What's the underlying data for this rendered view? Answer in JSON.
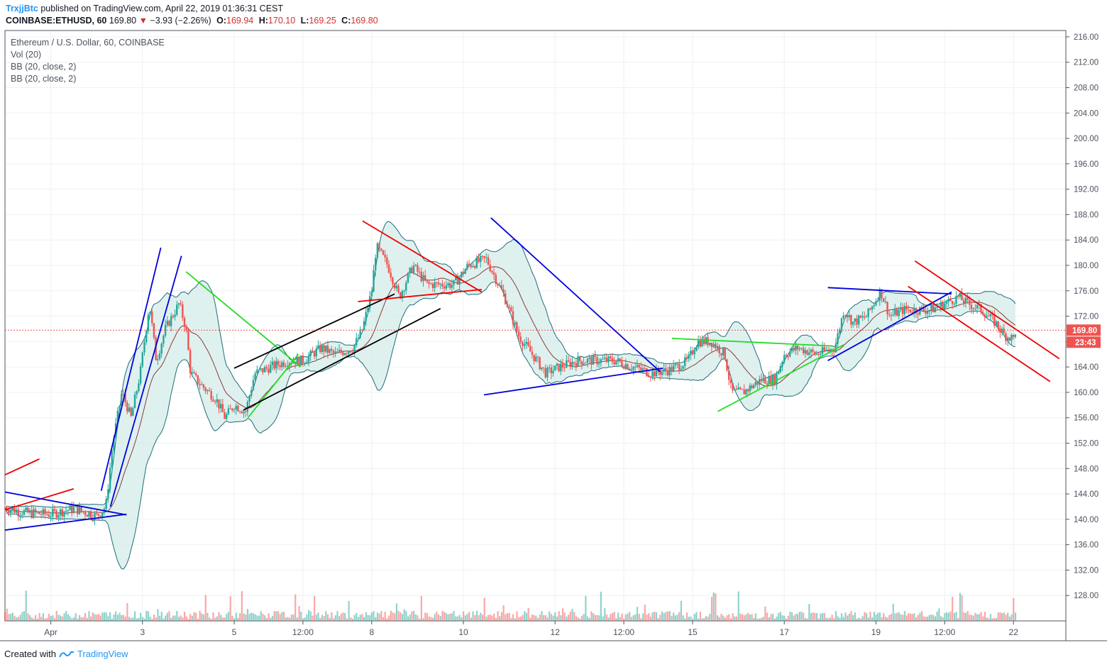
{
  "header": {
    "author": "TrxjjBtc",
    "published_text": "published on TradingView.com, April 22, 2019 01:36:31 CEST",
    "symbol": "COINBASE:ETHUSD, 60",
    "last": "169.80",
    "change_arrow": "▼",
    "change": "−3.93 (−2.26%)",
    "o_label": "O:",
    "o_value": "169.94",
    "h_label": "H:",
    "h_value": "170.10",
    "l_label": "L:",
    "l_value": "169.25",
    "c_label": "C:",
    "c_value": "169.80"
  },
  "legend": {
    "title": "Ethereum / U.S. Dollar, 60, COINBASE",
    "vol": "Vol (20)",
    "bb1": "BB (20, close, 2)",
    "bb2": "BB (20, close, 2)"
  },
  "footer": {
    "created_with": "Created with",
    "brand": "TradingView"
  },
  "colors": {
    "up": "#26a69a",
    "down": "#ef5350",
    "bb_band": "#1e6e7a",
    "bb_fill": "#d4ece9",
    "bb_basis": "#8b3a3a",
    "blue_line": "#0000dd",
    "red_line": "#ee0000",
    "green_line": "#22dd22",
    "black_line": "#000000",
    "price_label": "#ef5350"
  },
  "chart_data": {
    "type": "candlestick",
    "title": "Ethereum / U.S. Dollar, 60, COINBASE",
    "ylim": [
      124,
      217
    ],
    "y_ticks": [
      128,
      132,
      136,
      140,
      144,
      148,
      152,
      156,
      160,
      164,
      168,
      172,
      176,
      180,
      184,
      188,
      192,
      196,
      200,
      204,
      208,
      212,
      216
    ],
    "y_tick_labels": [
      "128.00",
      "132.00",
      "136.00",
      "140.00",
      "144.00",
      "148.00",
      "152.00",
      "156.00",
      "160.00",
      "164.00",
      "168.00",
      "172.00",
      "176.00",
      "180.00",
      "184.00",
      "188.00",
      "192.00",
      "196.00",
      "200.00",
      "204.00",
      "208.00",
      "212.00",
      "216.00"
    ],
    "x_ticks": [
      {
        "label": "Apr",
        "day": 1.0
      },
      {
        "label": "3",
        "day": 3.0
      },
      {
        "label": "5",
        "day": 5.0
      },
      {
        "label": "12:00",
        "day": 6.5
      },
      {
        "label": "8",
        "day": 8.0
      },
      {
        "label": "10",
        "day": 10.0
      },
      {
        "label": "12",
        "day": 12.0
      },
      {
        "label": "12:00",
        "day": 13.5
      },
      {
        "label": "15",
        "day": 15.0
      },
      {
        "label": "17",
        "day": 17.0
      },
      {
        "label": "19",
        "day": 19.0
      },
      {
        "label": "12:00",
        "day": 20.5
      },
      {
        "label": "22",
        "day": 22.0
      }
    ],
    "x_range_days": [
      -0.0,
      23.1
    ],
    "close_path": [
      [
        0.0,
        141.8
      ],
      [
        0.5,
        141.0
      ],
      [
        1.0,
        140.8
      ],
      [
        1.5,
        141.7
      ],
      [
        2.0,
        140.5
      ],
      [
        2.2,
        142.0
      ],
      [
        2.35,
        152
      ],
      [
        2.55,
        160
      ],
      [
        2.75,
        156
      ],
      [
        2.95,
        163
      ],
      [
        3.15,
        174
      ],
      [
        3.3,
        165
      ],
      [
        3.5,
        170
      ],
      [
        3.8,
        174
      ],
      [
        3.95,
        170
      ],
      [
        4.05,
        163
      ],
      [
        4.3,
        161
      ],
      [
        4.6,
        159
      ],
      [
        4.8,
        156
      ],
      [
        5.0,
        158
      ],
      [
        5.25,
        157
      ],
      [
        5.45,
        163
      ],
      [
        5.8,
        164
      ],
      [
        6.2,
        165
      ],
      [
        6.5,
        165
      ],
      [
        6.9,
        167
      ],
      [
        7.2,
        166
      ],
      [
        7.6,
        167
      ],
      [
        7.8,
        170
      ],
      [
        8.0,
        176
      ],
      [
        8.1,
        183
      ],
      [
        8.35,
        180
      ],
      [
        8.6,
        175
      ],
      [
        8.9,
        180
      ],
      [
        9.2,
        177
      ],
      [
        9.5,
        177
      ],
      [
        9.8,
        177
      ],
      [
        10.1,
        180
      ],
      [
        10.5,
        181
      ],
      [
        10.9,
        175
      ],
      [
        11.2,
        169
      ],
      [
        11.5,
        166
      ],
      [
        11.8,
        163
      ],
      [
        12.1,
        164
      ],
      [
        12.5,
        165
      ],
      [
        12.9,
        165
      ],
      [
        13.3,
        165
      ],
      [
        13.7,
        164
      ],
      [
        14.1,
        163
      ],
      [
        14.5,
        163.5
      ],
      [
        14.9,
        165
      ],
      [
        15.1,
        168
      ],
      [
        15.4,
        168
      ],
      [
        15.7,
        166
      ],
      [
        15.85,
        160
      ],
      [
        16.1,
        160
      ],
      [
        16.5,
        162
      ],
      [
        16.8,
        162
      ],
      [
        17.0,
        166
      ],
      [
        17.3,
        167
      ],
      [
        17.7,
        166
      ],
      [
        18.1,
        167
      ],
      [
        18.3,
        173
      ],
      [
        18.5,
        171
      ],
      [
        18.8,
        172
      ],
      [
        19.1,
        176
      ],
      [
        19.3,
        172
      ],
      [
        19.6,
        173
      ],
      [
        19.9,
        173
      ],
      [
        20.2,
        173
      ],
      [
        20.5,
        174
      ],
      [
        20.8,
        175
      ],
      [
        21.0,
        174
      ],
      [
        21.3,
        173
      ],
      [
        21.6,
        171
      ],
      [
        21.8,
        169
      ],
      [
        22.0,
        168.5
      ],
      [
        22.05,
        169.8
      ]
    ],
    "last_price": 169.8,
    "last_price_label": "169.80",
    "countdown_label": "23:43",
    "volume_spikes": [
      {
        "day": 2.3,
        "vol": 35
      },
      {
        "day": 2.7,
        "vol": 22
      },
      {
        "day": 3.1,
        "vol": 28
      },
      {
        "day": 3.95,
        "vol": 72
      },
      {
        "day": 8.0,
        "vol": 38
      },
      {
        "day": 10.9,
        "vol": 66
      },
      {
        "day": 15.85,
        "vol": 40
      }
    ],
    "drawings": [
      {
        "color": "red",
        "p1": [
          0,
          147
        ],
        "p2": [
          0.75,
          149.5
        ]
      },
      {
        "color": "red",
        "p1": [
          0,
          141.5
        ],
        "p2": [
          1.5,
          144.8
        ]
      },
      {
        "color": "blue",
        "p1": [
          0,
          144.3
        ],
        "p2": [
          2.65,
          140.7
        ]
      },
      {
        "color": "blue",
        "p1": [
          0,
          138.3
        ],
        "p2": [
          2.65,
          140.8
        ]
      },
      {
        "color": "blue",
        "p1": [
          2.1,
          144.5
        ],
        "p2": [
          3.4,
          182.8
        ]
      },
      {
        "color": "blue",
        "p1": [
          2.3,
          142
        ],
        "p2": [
          3.85,
          181.5
        ]
      },
      {
        "color": "green",
        "p1": [
          3.95,
          179
        ],
        "p2": [
          6.45,
          164
        ]
      },
      {
        "color": "green",
        "p1": [
          5.3,
          156
        ],
        "p2": [
          6.4,
          166
        ]
      },
      {
        "color": "black",
        "p1": [
          5.0,
          163.8
        ],
        "p2": [
          8.5,
          175.5
        ]
      },
      {
        "color": "black",
        "p1": [
          5.2,
          157.2
        ],
        "p2": [
          9.5,
          173.2
        ]
      },
      {
        "color": "red",
        "p1": [
          7.8,
          187
        ],
        "p2": [
          10.4,
          175.8
        ]
      },
      {
        "color": "red",
        "p1": [
          7.7,
          174.3
        ],
        "p2": [
          10.4,
          176.2
        ]
      },
      {
        "color": "blue",
        "p1": [
          10.6,
          187.5
        ],
        "p2": [
          14.3,
          163.2
        ]
      },
      {
        "color": "blue",
        "p1": [
          10.45,
          159.6
        ],
        "p2": [
          14.35,
          163.8
        ]
      },
      {
        "color": "green",
        "p1": [
          14.55,
          168.5
        ],
        "p2": [
          18.05,
          167.3
        ]
      },
      {
        "color": "green",
        "p1": [
          15.55,
          157
        ],
        "p2": [
          18.3,
          167.5
        ]
      },
      {
        "color": "blue",
        "p1": [
          17.95,
          176.5
        ],
        "p2": [
          20.65,
          175.5
        ]
      },
      {
        "color": "blue",
        "p1": [
          17.95,
          165
        ],
        "p2": [
          20.65,
          175.8
        ]
      },
      {
        "color": "red",
        "p1": [
          19.85,
          180.7
        ],
        "p2": [
          23.0,
          165.3
        ]
      },
      {
        "color": "red",
        "p1": [
          19.7,
          176.7
        ],
        "p2": [
          22.8,
          161.7
        ]
      }
    ]
  }
}
